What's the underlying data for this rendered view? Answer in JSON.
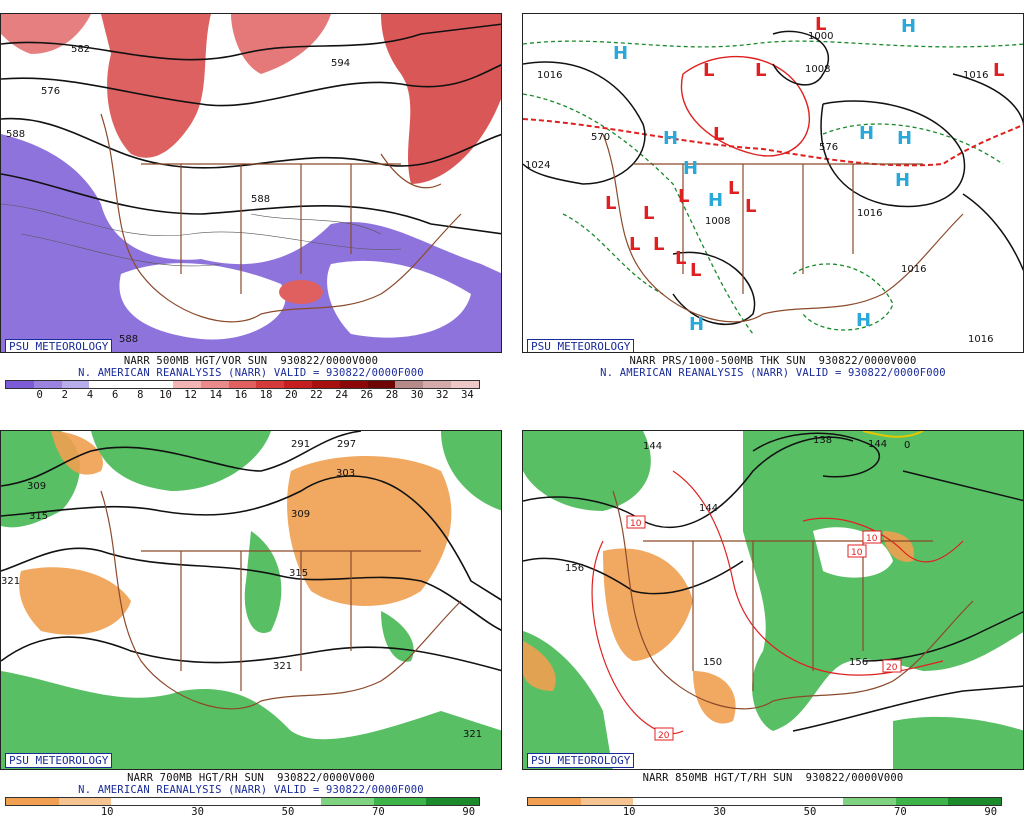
{
  "panels": [
    {
      "id": "vort",
      "brand": "PSU METEOROLOGY",
      "caption1": "NARR 500MB HGT/VOR SUN  930822/0000V000",
      "caption2": "N. AMERICAN REANALYSIS (NARR) VALID = 930822/0000F000",
      "contour_labels": [
        "582",
        "576",
        "588",
        "588",
        "594",
        "588"
      ],
      "colorbar": {
        "ticks": [
          "0",
          "2",
          "4",
          "6",
          "8",
          "10",
          "12",
          "14",
          "16",
          "18",
          "20",
          "22",
          "24",
          "26",
          "28",
          "30",
          "32",
          "34"
        ],
        "colors": [
          "#7b5bd6",
          "#9a84e0",
          "#b9acea",
          "#ffffff",
          "#ffffff",
          "#ffffff",
          "#f2b4b4",
          "#ea8a8a",
          "#e06060",
          "#d43a3a",
          "#c41e1e",
          "#a81010",
          "#8c0808",
          "#6e0404",
          "#b78a8a",
          "#d4aaaa",
          "#ecc8c8"
        ]
      }
    },
    {
      "id": "prs",
      "brand": "PSU METEOROLOGY",
      "caption1": "NARR PRS/1000-500MB THK SUN  930822/0000V000",
      "caption2": "N. AMERICAN REANALYSIS (NARR) VALID = 930822/0000F000",
      "contour_labels": [
        "1000",
        "1008",
        "1016",
        "1024",
        "1016",
        "1016",
        "1016",
        "1016",
        "1008",
        "570",
        "576"
      ],
      "high_symbol": "H",
      "low_symbol": "L"
    },
    {
      "id": "rh700",
      "brand": "PSU METEOROLOGY",
      "caption1": "NARR 700MB HGT/RH SUN  930822/0000V000",
      "caption2": "N. AMERICAN REANALYSIS (NARR) VALID = 930822/0000F000",
      "contour_labels": [
        "291",
        "297",
        "303",
        "309",
        "309",
        "315",
        "315",
        "321",
        "321",
        "321"
      ],
      "colorbar": {
        "ticks": [
          "10",
          "30",
          "50",
          "70",
          "90"
        ],
        "colors": [
          "#f0a050",
          "#f6c490",
          "#ffffff",
          "#ffffff",
          "#ffffff",
          "#ffffff",
          "#7fd27f",
          "#3cb44a",
          "#1a8a2a"
        ]
      }
    },
    {
      "id": "t850",
      "brand": "PSU METEOROLOGY",
      "caption1": "NARR 850MB HGT/T/RH SUN  930822/0000V000",
      "caption2": "",
      "contour_labels": [
        "144",
        "138",
        "144",
        "144",
        "156",
        "150",
        "156",
        "0"
      ],
      "temp_labels": [
        "10",
        "10",
        "10",
        "20",
        "20"
      ],
      "colorbar": {
        "ticks": [
          "10",
          "30",
          "50",
          "70",
          "90"
        ],
        "colors": [
          "#f0a050",
          "#f6c490",
          "#ffffff",
          "#ffffff",
          "#ffffff",
          "#ffffff",
          "#7fd27f",
          "#3cb44a",
          "#1a8a2a"
        ]
      }
    }
  ],
  "colors": {
    "brown_coast": "#8b4a2b",
    "green_rh": "#3cb44a",
    "orange_dry": "#f0a050",
    "purple_vort": "#7b5bd6",
    "red_vort": "#d43a3a",
    "high_blue": "#2aa8d8",
    "low_red": "#e02020",
    "caption_blue": "#1a2b9a"
  }
}
